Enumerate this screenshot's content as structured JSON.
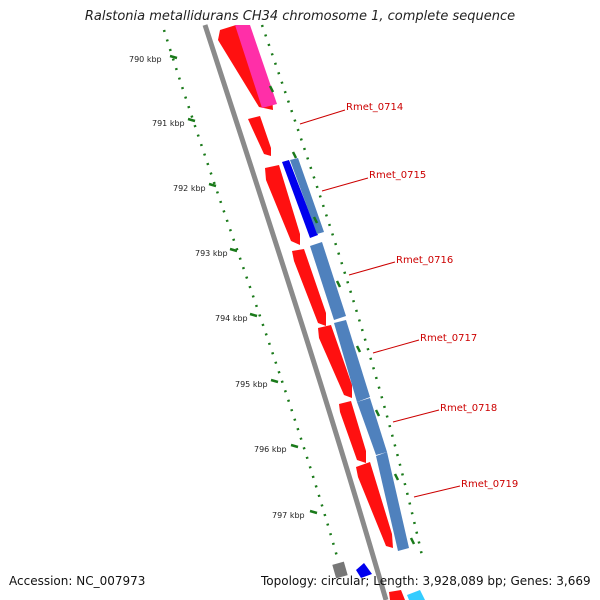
{
  "title": "Ralstonia metallidurans CH34 chromosome 1, complete sequence",
  "footer": {
    "accession": "Accession: NC_007973",
    "summary": "Topology: circular; Length: 3,928,089 bp; Genes: 3,669"
  },
  "tick_labels": [
    "790 kbp",
    "791 kbp",
    "792 kbp",
    "793 kbp",
    "794 kbp",
    "795 kbp",
    "796 kbp",
    "797 kbp"
  ],
  "gene_labels": [
    "Rmet_0714",
    "Rmet_0715",
    "Rmet_0716",
    "Rmet_0717",
    "Rmet_0718",
    "Rmet_0719"
  ],
  "colors": {
    "backbone": "#8a8a8a",
    "forward_gene": "#ff0000",
    "pink_feature": "#ff2fa8",
    "blue_feature": "#0000ee",
    "steel_feature": "#4f81bd",
    "cyan_feature": "#33ccff",
    "tick": "#1a7a1a",
    "label": "#cc0000"
  }
}
